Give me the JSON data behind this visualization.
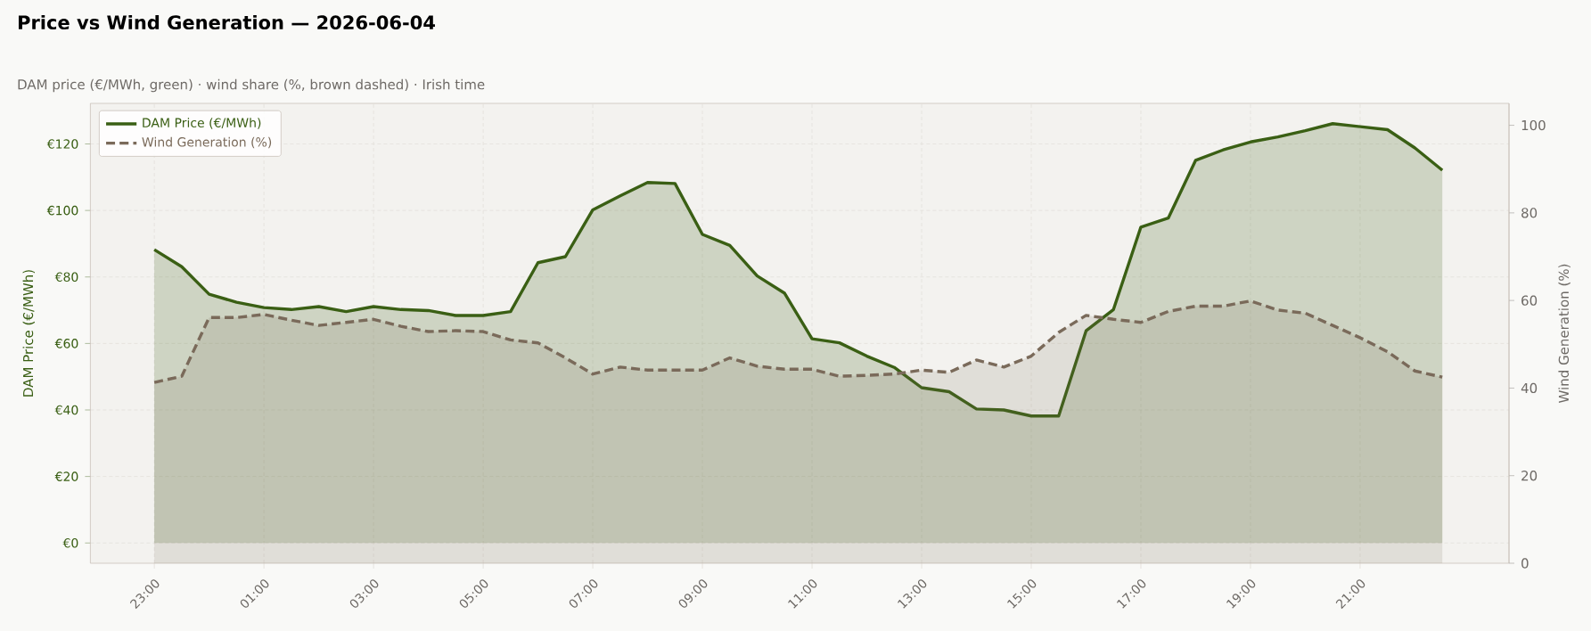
{
  "chart_data": {
    "type": "area",
    "title": "Price vs Wind Generation — 2026-06-04",
    "subtitle": "DAM price (€/MWh, green)  ·  wind share (%, brown dashed)  ·  Irish time",
    "ylabel": "DAM Price (€/MWh)",
    "y2label": "Wind Generation (%)",
    "x": [
      "2026-06-03T23:00",
      "2026-06-03T23:30",
      "2026-06-04T00:00",
      "2026-06-04T00:30",
      "2026-06-04T01:00",
      "2026-06-04T01:30",
      "2026-06-04T02:00",
      "2026-06-04T02:30",
      "2026-06-04T03:00",
      "2026-06-04T03:30",
      "2026-06-04T04:00",
      "2026-06-04T04:30",
      "2026-06-04T05:00",
      "2026-06-04T05:30",
      "2026-06-04T06:00",
      "2026-06-04T06:30",
      "2026-06-04T07:00",
      "2026-06-04T07:30",
      "2026-06-04T08:00",
      "2026-06-04T08:30",
      "2026-06-04T09:00",
      "2026-06-04T09:30",
      "2026-06-04T10:00",
      "2026-06-04T10:30",
      "2026-06-04T11:00",
      "2026-06-04T11:30",
      "2026-06-04T12:00",
      "2026-06-04T12:30",
      "2026-06-04T13:00",
      "2026-06-04T13:30",
      "2026-06-04T14:00",
      "2026-06-04T14:30",
      "2026-06-04T15:00",
      "2026-06-04T15:30",
      "2026-06-04T16:00",
      "2026-06-04T16:30",
      "2026-06-04T17:00",
      "2026-06-04T17:30",
      "2026-06-04T18:00",
      "2026-06-04T18:30",
      "2026-06-04T19:00",
      "2026-06-04T19:30",
      "2026-06-04T20:00",
      "2026-06-04T20:30",
      "2026-06-04T21:00",
      "2026-06-04T21:30",
      "2026-06-04T22:00",
      "2026-06-04T22:30"
    ],
    "series": [
      {
        "name": "DAM Price (€/MWh)",
        "color": "#3a5f14",
        "line_style": "solid",
        "values": [
          88.2,
          83.1,
          74.8,
          72.4,
          70.8,
          70.2,
          71.1,
          69.6,
          71.1,
          70.2,
          69.9,
          68.4,
          68.4,
          69.6,
          84.3,
          86.1,
          100.2,
          104.4,
          108.4,
          108.1,
          92.8,
          89.5,
          80.3,
          75.1,
          61.4,
          60.2,
          56.2,
          52.8,
          46.7,
          45.5,
          40.3,
          40.0,
          38.2,
          38.2,
          63.8,
          70.2,
          95.0,
          97.7,
          115.1,
          118.2,
          120.6,
          122.1,
          124.0,
          126.1,
          125.2,
          124.3,
          118.8,
          112.1
        ]
      },
      {
        "name": "Wind Generation (%)",
        "color": "#7a6a5a",
        "line_style": "dashed",
        "axis": "y2",
        "values": [
          41.3,
          42.7,
          56.1,
          56.1,
          56.8,
          55.5,
          54.3,
          55.0,
          55.7,
          54.1,
          52.9,
          53.1,
          52.9,
          51.0,
          50.3,
          46.9,
          43.2,
          44.8,
          44.1,
          44.1,
          44.1,
          46.9,
          45.0,
          44.3,
          44.3,
          42.7,
          42.9,
          43.2,
          44.1,
          43.6,
          46.4,
          44.8,
          47.3,
          52.7,
          56.6,
          55.7,
          55.0,
          57.5,
          58.7,
          58.7,
          59.9,
          57.8,
          57.1,
          54.3,
          51.5,
          48.3,
          43.9,
          42.5
        ]
      }
    ],
    "xlim": [
      "2026-06-03T21:50",
      "2026-06-04T23:43"
    ],
    "xticks": [
      {
        "value": "2026-06-03T23:00",
        "label": "23:00"
      },
      {
        "value": "2026-06-04T01:00",
        "label": "01:00"
      },
      {
        "value": "2026-06-04T03:00",
        "label": "03:00"
      },
      {
        "value": "2026-06-04T05:00",
        "label": "05:00"
      },
      {
        "value": "2026-06-04T07:00",
        "label": "07:00"
      },
      {
        "value": "2026-06-04T09:00",
        "label": "09:00"
      },
      {
        "value": "2026-06-04T11:00",
        "label": "11:00"
      },
      {
        "value": "2026-06-04T13:00",
        "label": "13:00"
      },
      {
        "value": "2026-06-04T15:00",
        "label": "15:00"
      },
      {
        "value": "2026-06-04T17:00",
        "label": "17:00"
      },
      {
        "value": "2026-06-04T19:00",
        "label": "19:00"
      },
      {
        "value": "2026-06-04T21:00",
        "label": "21:00"
      }
    ],
    "ylim": [
      -6.1,
      132.2
    ],
    "yticks": [
      {
        "value": 0,
        "label": "€0"
      },
      {
        "value": 20,
        "label": "€20"
      },
      {
        "value": 40,
        "label": "€40"
      },
      {
        "value": 60,
        "label": "€60"
      },
      {
        "value": 80,
        "label": "€80"
      },
      {
        "value": 100,
        "label": "€100"
      },
      {
        "value": 120,
        "label": "€120"
      }
    ],
    "y2lim": [
      0,
      105
    ],
    "y2ticks": [
      0,
      20,
      40,
      60,
      80,
      100
    ],
    "grid": true,
    "legend": "top left"
  }
}
